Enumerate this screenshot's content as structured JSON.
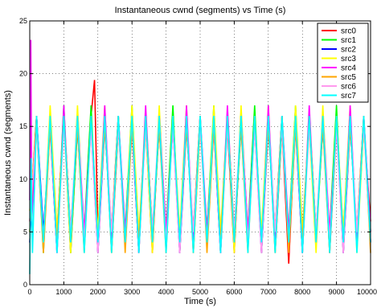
{
  "chart_data": {
    "type": "line",
    "title": "Instantaneous cwnd (segments) vs Time (s)",
    "xlabel": "Time (s)",
    "ylabel": "Instantaneous cwnd (segments)",
    "xlim": [
      0,
      10000
    ],
    "ylim": [
      0,
      25
    ],
    "xticks": [
      0,
      1000,
      2000,
      3000,
      4000,
      5000,
      6000,
      7000,
      8000,
      9000,
      10000
    ],
    "xtick_labels": [
      "0",
      "1000",
      "2000",
      "3000",
      "4000",
      "5000",
      "6000",
      "7000",
      "8000",
      "9000",
      "10000"
    ],
    "yticks": [
      0,
      5,
      10,
      15,
      20,
      25
    ],
    "ytick_labels": [
      "0",
      "5",
      "10",
      "15",
      "20",
      "25"
    ],
    "grid": true,
    "legend_position": "top-right",
    "series": [
      {
        "name": "src0",
        "color": "#ff0000",
        "x": [
          0,
          200,
          400,
          600,
          800,
          1000,
          1200,
          1400,
          1600,
          1800,
          1900,
          2000,
          2200,
          2400,
          2600,
          2800,
          3000,
          3200,
          3400,
          3600,
          3800,
          4000,
          4200,
          4400,
          4600,
          4800,
          5000,
          5200,
          5400,
          5600,
          5800,
          6000,
          6200,
          6400,
          6600,
          6800,
          7000,
          7200,
          7400,
          7600,
          7800,
          8000,
          8200,
          8400,
          8600,
          8800,
          9000,
          9200,
          9400,
          9600,
          9800,
          10000
        ],
        "y": [
          6,
          16,
          4,
          15,
          5,
          16,
          3,
          15,
          4,
          16,
          19.4,
          5,
          16,
          3,
          15,
          5,
          16,
          4,
          15,
          3,
          16,
          5,
          15,
          4,
          16,
          3,
          15,
          5,
          16,
          4,
          15,
          3,
          16,
          5,
          15,
          4,
          16,
          3,
          15,
          2,
          16,
          5,
          15,
          4,
          16,
          3,
          15,
          5,
          16,
          4,
          15,
          6
        ]
      },
      {
        "name": "src1",
        "color": "#00ff00",
        "x": [
          0,
          200,
          400,
          600,
          800,
          1000,
          1200,
          1400,
          1600,
          1800,
          2000,
          2200,
          2400,
          2600,
          2800,
          3000,
          3200,
          3400,
          3600,
          3800,
          4000,
          4200,
          4400,
          4600,
          4800,
          5000,
          5200,
          5400,
          5600,
          5800,
          6000,
          6200,
          6400,
          6600,
          6800,
          7000,
          7200,
          7400,
          7600,
          7800,
          8000,
          8200,
          8400,
          8600,
          8800,
          9000,
          9200,
          9400,
          9600,
          9800,
          10000
        ],
        "y": [
          5,
          15,
          3,
          16,
          4,
          17,
          3,
          15,
          5,
          17,
          3,
          16,
          4,
          15,
          5,
          17,
          3,
          16,
          4,
          15,
          5,
          17,
          3,
          16,
          4,
          15,
          5,
          17,
          3,
          16,
          4,
          15,
          5,
          17,
          3,
          16,
          4,
          15,
          5,
          17,
          3,
          16,
          4,
          15,
          5,
          17,
          3,
          16,
          4,
          15,
          5
        ]
      },
      {
        "name": "src2",
        "color": "#0000ff",
        "x": [
          0,
          200,
          400,
          600,
          800,
          1000,
          1200,
          1400,
          1600,
          1800,
          2000,
          2200,
          2400,
          2600,
          2800,
          3000,
          3200,
          3400,
          3600,
          3800,
          4000,
          4200,
          4400,
          4600,
          4800,
          5000,
          5200,
          5400,
          5600,
          5800,
          6000,
          6200,
          6400,
          6600,
          6800,
          7000,
          7200,
          7400,
          7600,
          7800,
          8000,
          8200,
          8400,
          8600,
          8800,
          9000,
          9200,
          9400,
          9600,
          9800,
          10000
        ],
        "y": [
          4,
          16,
          5,
          15,
          3,
          16,
          5,
          15,
          4,
          16,
          3,
          15,
          5,
          16,
          4,
          15,
          3,
          16,
          5,
          15,
          4,
          16,
          3,
          15,
          5,
          16,
          4,
          15,
          3,
          16,
          5,
          15,
          4,
          16,
          3,
          15,
          5,
          16,
          4,
          15,
          3,
          16,
          5,
          15,
          4,
          16,
          3,
          15,
          5,
          16,
          4
        ]
      },
      {
        "name": "src3",
        "color": "#ffff00",
        "x": [
          0,
          200,
          400,
          600,
          800,
          1000,
          1200,
          1400,
          1600,
          1800,
          2000,
          2200,
          2400,
          2600,
          2800,
          3000,
          3200,
          3400,
          3600,
          3800,
          4000,
          4200,
          4400,
          4600,
          4800,
          5000,
          5200,
          5400,
          5600,
          5800,
          6000,
          6200,
          6400,
          6600,
          6800,
          7000,
          7200,
          7400,
          7600,
          7800,
          8000,
          8200,
          8400,
          8600,
          8800,
          9000,
          9200,
          9400,
          9600,
          9800,
          10000
        ],
        "y": [
          7,
          15,
          4,
          17,
          5,
          16,
          3,
          17,
          4,
          15,
          5,
          17,
          3,
          16,
          4,
          17,
          5,
          15,
          3,
          17,
          4,
          16,
          5,
          17,
          3,
          15,
          4,
          17,
          5,
          16,
          3,
          17,
          4,
          15,
          5,
          17,
          3,
          16,
          4,
          17,
          5,
          15,
          3,
          17,
          4,
          16,
          5,
          17,
          3,
          15,
          4
        ]
      },
      {
        "name": "src4",
        "color": "#ff00ff",
        "x": [
          0,
          30,
          60,
          200,
          400,
          600,
          800,
          1000,
          1200,
          1400,
          1600,
          1800,
          2000,
          2200,
          2400,
          2600,
          2800,
          3000,
          3200,
          3400,
          3600,
          3800,
          4000,
          4200,
          4400,
          4600,
          4800,
          5000,
          5200,
          5400,
          5600,
          5800,
          6000,
          6200,
          6400,
          6600,
          6800,
          7000,
          7200,
          7400,
          7600,
          7800,
          8000,
          8200,
          8400,
          8600,
          8800,
          9000,
          9200,
          9400,
          9600,
          9800,
          10000
        ],
        "y": [
          8,
          23.2,
          6,
          16,
          4,
          15,
          3,
          17,
          4,
          16,
          5,
          15,
          3,
          17,
          4,
          16,
          5,
          15,
          3,
          17,
          4,
          16,
          5,
          15,
          3,
          17,
          4,
          16,
          5,
          15,
          3,
          17,
          4,
          16,
          5,
          15,
          3,
          17,
          4,
          16,
          5,
          15,
          3,
          17,
          4,
          16,
          5,
          15,
          3,
          17,
          4,
          16,
          5
        ]
      },
      {
        "name": "src5",
        "color": "#ffa500",
        "x": [
          0,
          200,
          400,
          600,
          800,
          1000,
          1200,
          1400,
          1600,
          1800,
          2000,
          2200,
          2400,
          2600,
          2800,
          3000,
          3200,
          3400,
          3600,
          3800,
          4000,
          4200,
          4400,
          4600,
          4800,
          5000,
          5200,
          5400,
          5600,
          5800,
          6000,
          6200,
          6400,
          6600,
          6800,
          7000,
          7200,
          7400,
          7600,
          7800,
          8000,
          8200,
          8400,
          8600,
          8800,
          9000,
          9200,
          9400,
          9600,
          9800,
          10000
        ],
        "y": [
          5,
          16,
          3,
          15,
          4,
          16,
          5,
          15,
          3,
          16,
          4,
          15,
          5,
          16,
          3,
          15,
          4,
          16,
          5,
          15,
          3,
          16,
          4,
          15,
          5,
          16,
          3,
          15,
          4,
          16,
          5,
          15,
          3,
          16,
          4,
          15,
          5,
          16,
          3,
          15,
          4,
          16,
          5,
          15,
          3,
          16,
          4,
          15,
          5,
          16,
          3
        ]
      },
      {
        "name": "src6",
        "color": "#ff99ee",
        "x": [
          0,
          200,
          400,
          600,
          800,
          1000,
          1200,
          1400,
          1600,
          1800,
          2000,
          2200,
          2400,
          2600,
          2800,
          3000,
          3200,
          3400,
          3600,
          3800,
          4000,
          4200,
          4400,
          4600,
          4800,
          5000,
          5200,
          5400,
          5600,
          5800,
          6000,
          6200,
          6400,
          6600,
          6800,
          7000,
          7200,
          7400,
          7600,
          7800,
          8000,
          8200,
          8400,
          8600,
          8800,
          9000,
          9200,
          9400,
          9600,
          9800,
          10000
        ],
        "y": [
          6,
          15,
          4,
          16,
          3,
          15,
          5,
          16,
          4,
          15,
          3,
          16,
          5,
          15,
          4,
          16,
          3,
          15,
          5,
          16,
          4,
          15,
          3,
          16,
          5,
          15,
          4,
          16,
          3,
          15,
          5,
          16,
          4,
          15,
          3,
          16,
          5,
          15,
          4,
          16,
          3,
          15,
          5,
          16,
          4,
          15,
          3,
          16,
          5,
          15,
          4
        ]
      },
      {
        "name": "src7",
        "color": "#00ffff",
        "x": [
          0,
          40,
          80,
          200,
          400,
          600,
          800,
          1000,
          1200,
          1400,
          1600,
          1800,
          2000,
          2200,
          2400,
          2600,
          2800,
          3000,
          3200,
          3400,
          3600,
          3800,
          4000,
          4200,
          4400,
          4600,
          4800,
          5000,
          5200,
          5400,
          5600,
          5800,
          6000,
          6200,
          6400,
          6600,
          6800,
          7000,
          7200,
          7400,
          7600,
          7800,
          8000,
          8200,
          8400,
          8600,
          8800,
          9000,
          9200,
          9400,
          9600,
          9800,
          10000
        ],
        "y": [
          1,
          12,
          3,
          16,
          4,
          16,
          3,
          16,
          4,
          16,
          3,
          16,
          4,
          16,
          3,
          16,
          4,
          16,
          3,
          16,
          4,
          16,
          3,
          16,
          4,
          16,
          3,
          16,
          4,
          16,
          3,
          16,
          4,
          16,
          3,
          16,
          4,
          16,
          3,
          16,
          4,
          16,
          3,
          16,
          4,
          16,
          3,
          16,
          4,
          16,
          3,
          16,
          4
        ]
      }
    ]
  }
}
